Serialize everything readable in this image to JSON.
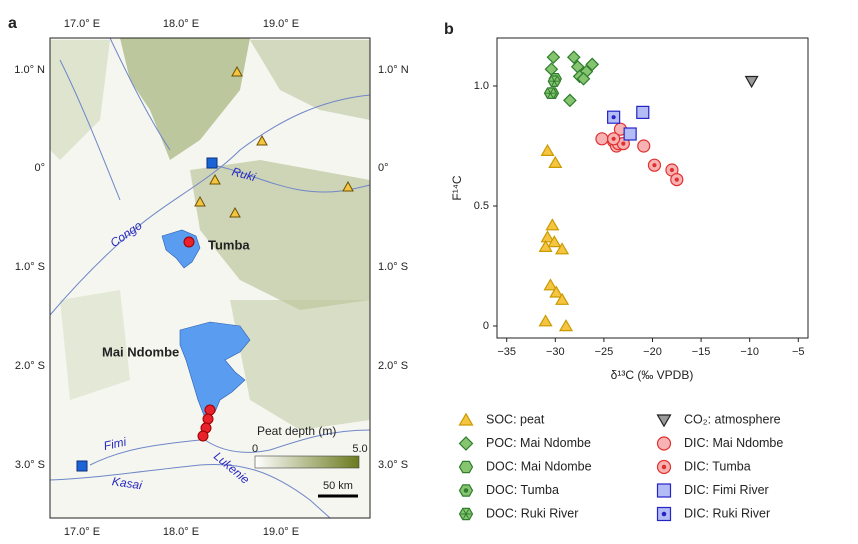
{
  "map": {
    "panel": "a",
    "lon_labels": [
      "17.0° E",
      "18.0° E",
      "19.0° E"
    ],
    "lat_labels": [
      "1.0° N",
      "0°",
      "1.0° S",
      "2.0° S",
      "3.0° S"
    ],
    "places": [
      "Tumba",
      "Mai Ndombe"
    ],
    "rivers": [
      "Ruki",
      "Congo",
      "Fimi",
      "Kasai",
      "Lukenie"
    ],
    "colorbar": {
      "title": "Peat depth (m)",
      "min_label": "0",
      "max_label": "5.0"
    },
    "scale_bar": "50 km"
  },
  "chart_data": {
    "type": "scatter",
    "panel": "b",
    "xlabel": "δ¹³C (‰ VPDB)",
    "ylabel": "F¹⁴C",
    "xlim": [
      -36,
      -4
    ],
    "ylim": [
      -0.05,
      1.2
    ],
    "xticks": [
      {
        "value": -35,
        "label": "−35"
      },
      {
        "value": -30,
        "label": "−30"
      },
      {
        "value": -25,
        "label": "−25"
      },
      {
        "value": -20,
        "label": "−20"
      },
      {
        "value": -15,
        "label": "−15"
      },
      {
        "value": -10,
        "label": "−10"
      },
      {
        "value": -5,
        "label": "−5"
      }
    ],
    "yticks": [
      0,
      0.5,
      {
        "value": 1,
        "label": "1.0"
      }
    ],
    "grid": false,
    "series": [
      {
        "name": "SOC: peat",
        "marker": "triangle",
        "color": "#f5c542",
        "edgecolor": "#c99a00",
        "x": [
          -30.8,
          -30,
          -30.3,
          -30.8,
          -30.1,
          -31,
          -29.3,
          -30.5,
          -29.9,
          -29.3,
          -31,
          -28.9
        ],
        "y": [
          0.73,
          0.68,
          0.42,
          0.37,
          0.35,
          0.33,
          0.32,
          0.17,
          0.14,
          0.11,
          0.02,
          0.0
        ]
      },
      {
        "name": "POC: Mai Ndombe",
        "marker": "diamond",
        "color": "#86c46f",
        "edgecolor": "#2f7d2f",
        "x": [
          -30.2,
          -28.1,
          -27.7,
          -26.2,
          -26.8,
          -27.5,
          -28.5,
          -30.4,
          -27.1
        ],
        "y": [
          1.12,
          1.12,
          1.08,
          1.09,
          1.06,
          1.04,
          0.94,
          1.07,
          1.03
        ]
      },
      {
        "name": "DOC: Mai Ndombe",
        "marker": "hexagon",
        "color": "#86c46f",
        "edgecolor": "#2f7d2f",
        "x": [
          -30,
          -30.3
        ],
        "y": [
          1.03,
          0.97
        ]
      },
      {
        "name": "DOC: Tumba",
        "marker": "hexagon-dot",
        "color": "#86c46f",
        "edgecolor": "#2f7d2f",
        "x": [
          -30.3
        ],
        "y": [
          0.97
        ]
      },
      {
        "name": "DOC: Ruki River",
        "marker": "hexagon-star",
        "color": "#86c46f",
        "edgecolor": "#2f7d2f",
        "x": [
          -30.1,
          -30.5
        ],
        "y": [
          1.02,
          0.97
        ]
      },
      {
        "name": "CO₂: atmosphere",
        "marker": "triangle-down",
        "color": "#9a9a9a",
        "edgecolor": "#222222",
        "x": [
          -9.8
        ],
        "y": [
          1.02
        ]
      },
      {
        "name": "DIC: Mai Ndombe",
        "marker": "circle",
        "color": "#f7b3b3",
        "edgecolor": "#e03030",
        "x": [
          -25.2,
          -24,
          -23.3,
          -20.9,
          -23.7
        ],
        "y": [
          0.78,
          0.77,
          0.82,
          0.75,
          0.75
        ]
      },
      {
        "name": "DIC: Tumba",
        "marker": "circle-dot",
        "color": "#f7b3b3",
        "edgecolor": "#e03030",
        "x": [
          -23.5,
          -23,
          -19.8,
          -18,
          -17.5,
          -24
        ],
        "y": [
          0.76,
          0.76,
          0.67,
          0.65,
          0.61,
          0.78
        ]
      },
      {
        "name": "DIC: Fimi River",
        "marker": "square",
        "color": "#b3bcf5",
        "edgecolor": "#2424c8",
        "x": [
          -21,
          -22.3
        ],
        "y": [
          0.89,
          0.8
        ]
      },
      {
        "name": "DIC: Ruki River",
        "marker": "square-dot",
        "color": "#b3bcf5",
        "edgecolor": "#2424c8",
        "x": [
          -24
        ],
        "y": [
          0.87
        ]
      }
    ]
  }
}
